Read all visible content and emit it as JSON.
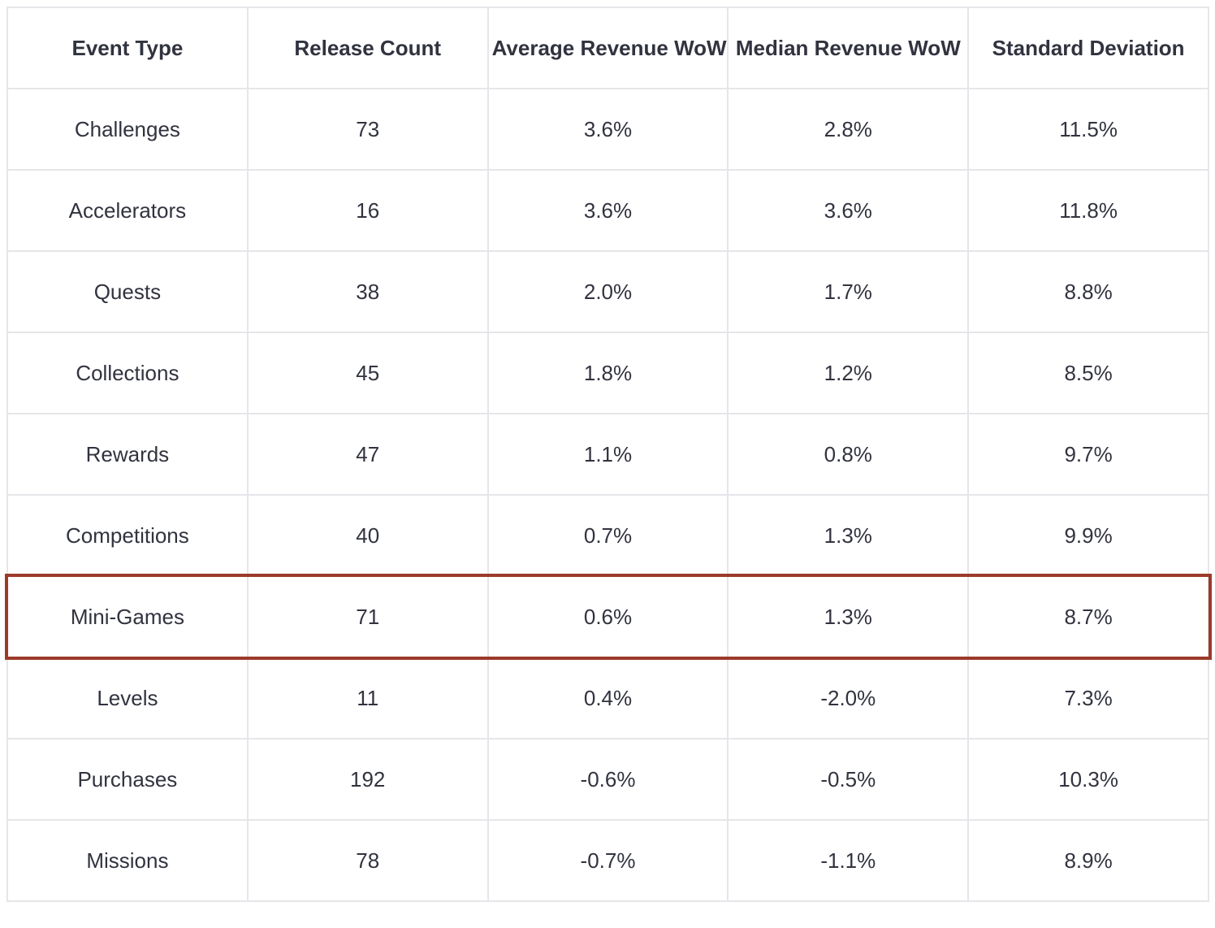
{
  "chart_data": {
    "type": "table",
    "columns": [
      "Event Type",
      "Release Count",
      "Average Revenue WoW",
      "Median Revenue WoW",
      "Standard Deviation"
    ],
    "rows": [
      [
        "Challenges",
        "73",
        "3.6%",
        "2.8%",
        "11.5%"
      ],
      [
        "Accelerators",
        "16",
        "3.6%",
        "3.6%",
        "11.8%"
      ],
      [
        "Quests",
        "38",
        "2.0%",
        "1.7%",
        "8.8%"
      ],
      [
        "Collections",
        "45",
        "1.8%",
        "1.2%",
        "8.5%"
      ],
      [
        "Rewards",
        "47",
        "1.1%",
        "0.8%",
        "9.7%"
      ],
      [
        "Competitions",
        "40",
        "0.7%",
        "1.3%",
        "9.9%"
      ],
      [
        "Mini-Games",
        "71",
        "0.6%",
        "1.3%",
        "8.7%"
      ],
      [
        "Levels",
        "11",
        "0.4%",
        "-2.0%",
        "7.3%"
      ],
      [
        "Purchases",
        "192",
        "-0.6%",
        "-0.5%",
        "10.3%"
      ],
      [
        "Missions",
        "78",
        "-0.7%",
        "-1.1%",
        "8.9%"
      ]
    ],
    "highlighted_row": "Mini-Games",
    "highlight_color": "#9b3a2a"
  }
}
